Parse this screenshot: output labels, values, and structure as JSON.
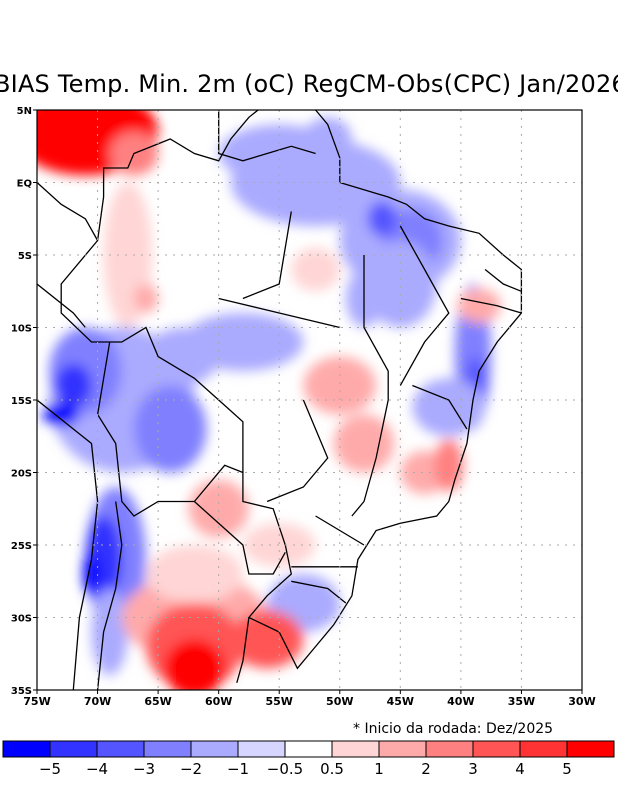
{
  "chart_data": {
    "type": "heatmap",
    "title": "BIAS Temp. Min. 2m (oC) RegCM-Obs(CPC) Jan/2026",
    "note": "* Inicio da rodada: Dez/2025",
    "xlabel": "",
    "ylabel": "",
    "xlim": [
      -75,
      -30
    ],
    "ylim": [
      -35,
      5
    ],
    "grid": true,
    "x_ticks": [
      {
        "value": -75,
        "label": "75W"
      },
      {
        "value": -70,
        "label": "70W"
      },
      {
        "value": -65,
        "label": "65W"
      },
      {
        "value": -60,
        "label": "60W"
      },
      {
        "value": -55,
        "label": "55W"
      },
      {
        "value": -50,
        "label": "50W"
      },
      {
        "value": -45,
        "label": "45W"
      },
      {
        "value": -40,
        "label": "40W"
      },
      {
        "value": -35,
        "label": "35W"
      },
      {
        "value": -30,
        "label": "30W"
      }
    ],
    "y_ticks": [
      {
        "value": 5,
        "label": "5N"
      },
      {
        "value": 0,
        "label": "EQ"
      },
      {
        "value": -5,
        "label": "5S"
      },
      {
        "value": -10,
        "label": "10S"
      },
      {
        "value": -15,
        "label": "15S"
      },
      {
        "value": -20,
        "label": "20S"
      },
      {
        "value": -25,
        "label": "25S"
      },
      {
        "value": -30,
        "label": "30S"
      },
      {
        "value": -35,
        "label": "35S"
      }
    ],
    "colorbar": {
      "colors": [
        "#0000ff",
        "#3333ff",
        "#5555ff",
        "#8080ff",
        "#aaaaff",
        "#d5d5ff",
        "#ffffff",
        "#ffd5d5",
        "#ffaaaa",
        "#ff8080",
        "#ff5555",
        "#ff3333",
        "#ff0000"
      ],
      "boundaries": [
        "-5",
        "-4",
        "-3",
        "-2",
        "-1",
        "-0.5",
        "0.5",
        "1",
        "2",
        "3",
        "4",
        "5"
      ]
    },
    "regions": [
      {
        "name": "northwest-warm",
        "lon": -71,
        "lat": 3,
        "value": 5
      },
      {
        "name": "western-amazon-warm",
        "lon": -69,
        "lat": -5,
        "value": 0.8
      },
      {
        "name": "para-cool",
        "lon": -52,
        "lat": -1,
        "value": -1.5
      },
      {
        "name": "maranhao-cool",
        "lon": -46,
        "lat": -3,
        "value": -3
      },
      {
        "name": "bolivia-cool",
        "lon": -70,
        "lat": -13,
        "value": -4
      },
      {
        "name": "andes-cool",
        "lon": -70,
        "lat": -26,
        "value": -5
      },
      {
        "name": "argentina-warm",
        "lon": -62,
        "lat": -33,
        "value": 5
      },
      {
        "name": "uruguay-warm",
        "lon": -56,
        "lat": -31.5,
        "value": 3.5
      },
      {
        "name": "bahia-coast-cool",
        "lon": -39.5,
        "lat": -14,
        "value": -3
      },
      {
        "name": "espirito-santo-warm",
        "lon": -41,
        "lat": -19,
        "value": 2.5
      },
      {
        "name": "paraguay-warm",
        "lon": -59,
        "lat": -23,
        "value": 1.2
      },
      {
        "name": "central-brazil-warm",
        "lon": -49,
        "lat": -16,
        "value": 1
      }
    ]
  }
}
